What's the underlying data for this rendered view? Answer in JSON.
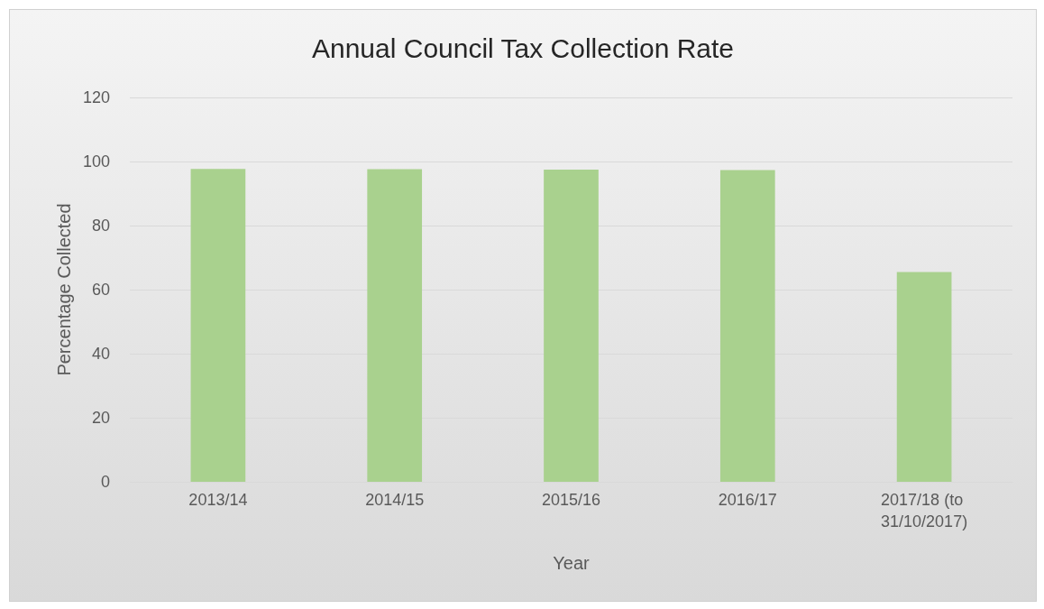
{
  "chart_data": {
    "type": "bar",
    "title": "Annual Council Tax Collection Rate",
    "xlabel": "Year",
    "ylabel": "Percentage Collected",
    "categories": [
      "2013/14",
      "2014/15",
      "2015/16",
      "2016/17",
      "2017/18 (to 31/10/2017)"
    ],
    "values": [
      97.7,
      97.6,
      97.5,
      97.3,
      65.5
    ],
    "color": "#a9d18e",
    "ylim": [
      0,
      120
    ],
    "yticks": [
      0,
      20,
      40,
      60,
      80,
      100,
      120
    ],
    "grid": "y"
  }
}
